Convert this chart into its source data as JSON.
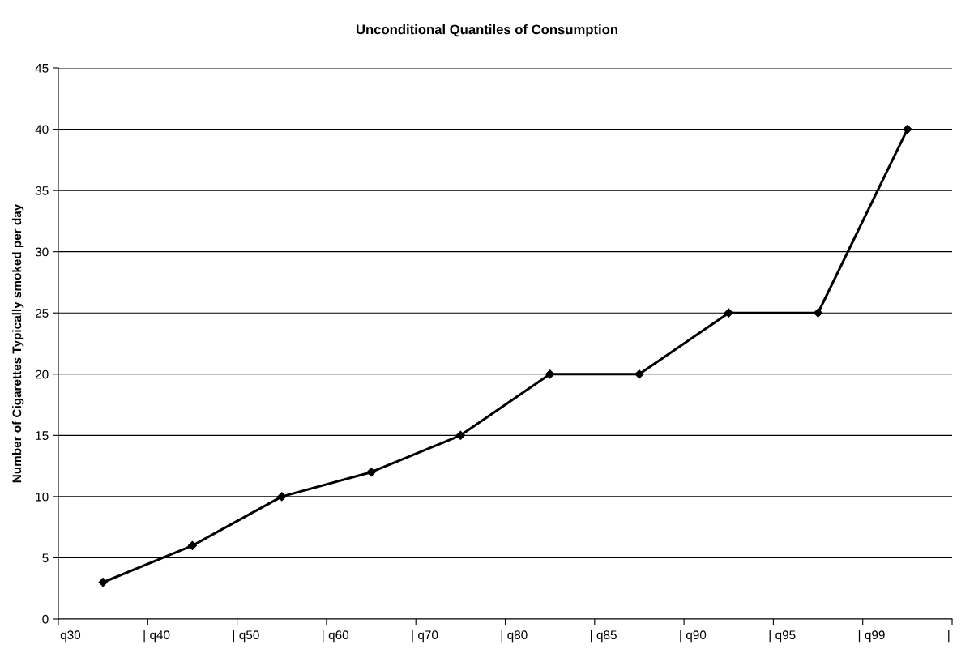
{
  "chart_data": {
    "type": "line",
    "title": "Unconditional Quantiles of Consumption",
    "ylabel": "Number of Cigarettes Typically smoked per day",
    "categories": [
      "q30                  |",
      "q40                  |",
      "q50                  |",
      "q60                  |",
      "q70                  |",
      "q80                  |",
      "q85                  |",
      "q90                  |",
      "q95                  |",
      "q99                  |"
    ],
    "series": [
      {
        "color": "#000000",
        "values": [
          3,
          6,
          10,
          12,
          15,
          20,
          20,
          25,
          25,
          40
        ]
      }
    ],
    "ylim": [
      0,
      45
    ],
    "yticks": [
      0,
      5,
      10,
      15,
      20,
      25,
      30,
      35,
      40,
      45
    ],
    "grid": "y",
    "legend": false,
    "marker": "diamond",
    "line_style": "solid"
  }
}
